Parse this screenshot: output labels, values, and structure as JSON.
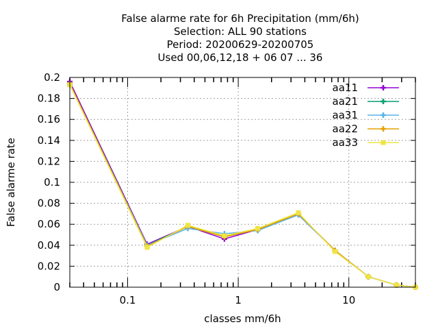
{
  "chart_data": {
    "type": "line",
    "title_lines": [
      "False alarme rate  for 6h Precipitation (mm/6h)",
      "Selection: ALL     90 stations",
      "Period: 20200629-20200705",
      "Used  00,06,12,18 + 06 07 ... 36"
    ],
    "xlabel": "classes mm/6h",
    "ylabel": "False alarme rate",
    "x_scale": "log",
    "xlim": [
      0.03,
      40
    ],
    "ylim": [
      0,
      0.2
    ],
    "x_ticks": [
      0.1,
      1,
      10
    ],
    "x_tick_labels": [
      "0.1",
      "1",
      "10"
    ],
    "y_ticks": [
      0,
      0.02,
      0.04,
      0.06,
      0.08,
      0.1,
      0.12,
      0.14,
      0.16,
      0.18,
      0.2
    ],
    "y_tick_labels": [
      "0",
      "0.02",
      "0.04",
      "0.06",
      "0.08",
      "0.1",
      "0.12",
      "0.14",
      "0.16",
      "0.18",
      "0.2"
    ],
    "grid": true,
    "legend_position": "top-right",
    "x": [
      0.03,
      0.15,
      0.35,
      0.75,
      1.5,
      3.5,
      7.5,
      15,
      27,
      40
    ],
    "series": [
      {
        "name": "aa11",
        "color": "#9400d3",
        "marker": "plus",
        "values": [
          0.196,
          0.041,
          0.058,
          0.046,
          0.055,
          0.069,
          0.035,
          0.01,
          0.002,
          0.0
        ]
      },
      {
        "name": "aa21",
        "color": "#009e73",
        "marker": "plus",
        "values": [
          0.194,
          0.04,
          0.058,
          0.048,
          0.055,
          0.07,
          0.035,
          0.01,
          0.002,
          0.0
        ]
      },
      {
        "name": "aa31",
        "color": "#56b4e9",
        "marker": "plus",
        "values": [
          0.193,
          0.04,
          0.056,
          0.051,
          0.054,
          0.069,
          0.035,
          0.01,
          0.002,
          0.0
        ]
      },
      {
        "name": "aa22",
        "color": "#e69f00",
        "marker": "plus",
        "values": [
          0.194,
          0.039,
          0.058,
          0.048,
          0.055,
          0.07,
          0.035,
          0.01,
          0.002,
          0.0
        ]
      },
      {
        "name": "aa33",
        "color": "#f0e442",
        "marker": "square",
        "values": [
          0.193,
          0.038,
          0.059,
          0.049,
          0.056,
          0.071,
          0.034,
          0.01,
          0.002,
          0.0
        ]
      }
    ]
  }
}
